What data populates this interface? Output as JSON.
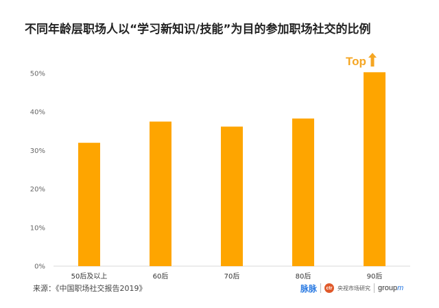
{
  "title": "不同年龄层职场人以“学习新知识/技能”为目的参加职场社交的比例",
  "callout": {
    "text": "Top",
    "icon": "up-arrow-icon",
    "color": "#f5a623"
  },
  "source": "来源：《中国职场社交报告2019》",
  "logos": {
    "maimai": "脉脉",
    "ctr_mark": "ctr",
    "ctr_text": "央视市场研究",
    "groupm": "group",
    "groupm_m": "m"
  },
  "colors": {
    "bar": "#fea500",
    "axis": "#d9d9d9",
    "callout": "#f5a623"
  },
  "chart_data": {
    "type": "bar",
    "categories": [
      "50后及以上",
      "60后",
      "70后",
      "80后",
      "90后"
    ],
    "values": [
      32,
      37.5,
      36.2,
      38.3,
      50.3
    ],
    "ylim": [
      0,
      50
    ],
    "ytick_labels": [
      "0%",
      "10%",
      "20%",
      "30%",
      "40%",
      "50%"
    ],
    "yticks": [
      0,
      10,
      20,
      30,
      40,
      50
    ],
    "unit": "%",
    "grid": false,
    "legend": "none"
  }
}
